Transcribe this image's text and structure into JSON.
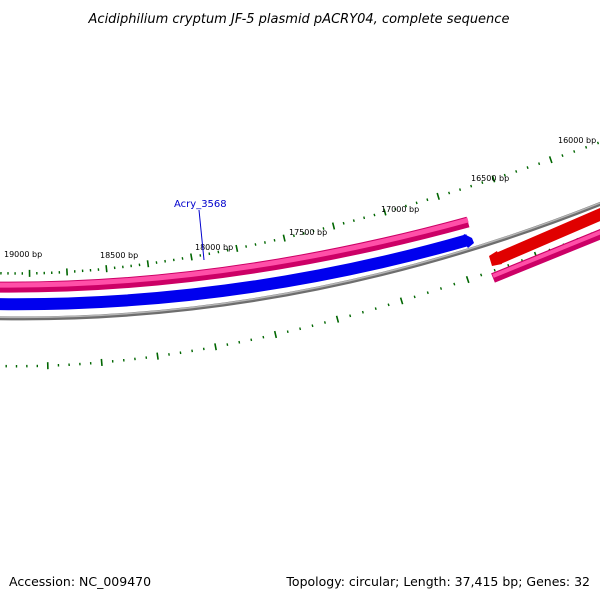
{
  "title": "Acidiphilium cryptum JF-5 plasmid pACRY04, complete sequence",
  "tick_labels": [
    "16000 bp",
    "16500 bp",
    "17000 bp",
    "17500 bp",
    "18000 bp",
    "18500 bp",
    "19000 bp"
  ],
  "gene_label": "Acry_3568",
  "footer": {
    "accession": "Accession: NC_009470",
    "summary": "Topology: circular; Length: 37,415 bp; Genes: 32"
  },
  "colors": {
    "pink": "#ff3399",
    "pink_dark": "#cc0066",
    "blue": "#0000ff",
    "red": "#ff0000",
    "backbone": "#808080",
    "tick": "#006600",
    "label_blue": "#0000cc"
  }
}
